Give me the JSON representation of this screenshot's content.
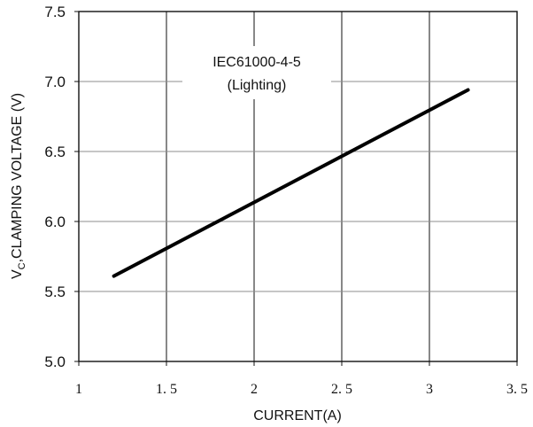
{
  "chart_data": {
    "type": "line",
    "title": "",
    "xlabel": "CURRENT(A)",
    "ylabel": {
      "prefix": "V",
      "subscript": "C",
      "suffix": ",CLAMPING VOLTAGE  (V)"
    },
    "xlim": [
      1,
      3.5
    ],
    "ylim": [
      5.0,
      7.5
    ],
    "xticks": [
      1,
      1.5,
      2,
      2.5,
      3,
      3.5
    ],
    "yticks": [
      5.0,
      5.5,
      6.0,
      6.5,
      7.0,
      7.5
    ],
    "xtick_labels": [
      "1",
      "1. 5",
      "2",
      "2. 5",
      "3",
      "3. 5"
    ],
    "ytick_labels": [
      "5.0",
      "5.5",
      "6.0",
      "6.5",
      "7.0",
      "7.5"
    ],
    "grid": true,
    "legend": "none",
    "annotation": [
      "IEC61000-4-5",
      "(Lighting)"
    ],
    "series": [
      {
        "color": "#000000",
        "x": [
          1.2,
          3.22
        ],
        "y": [
          5.61,
          6.94
        ]
      }
    ]
  }
}
